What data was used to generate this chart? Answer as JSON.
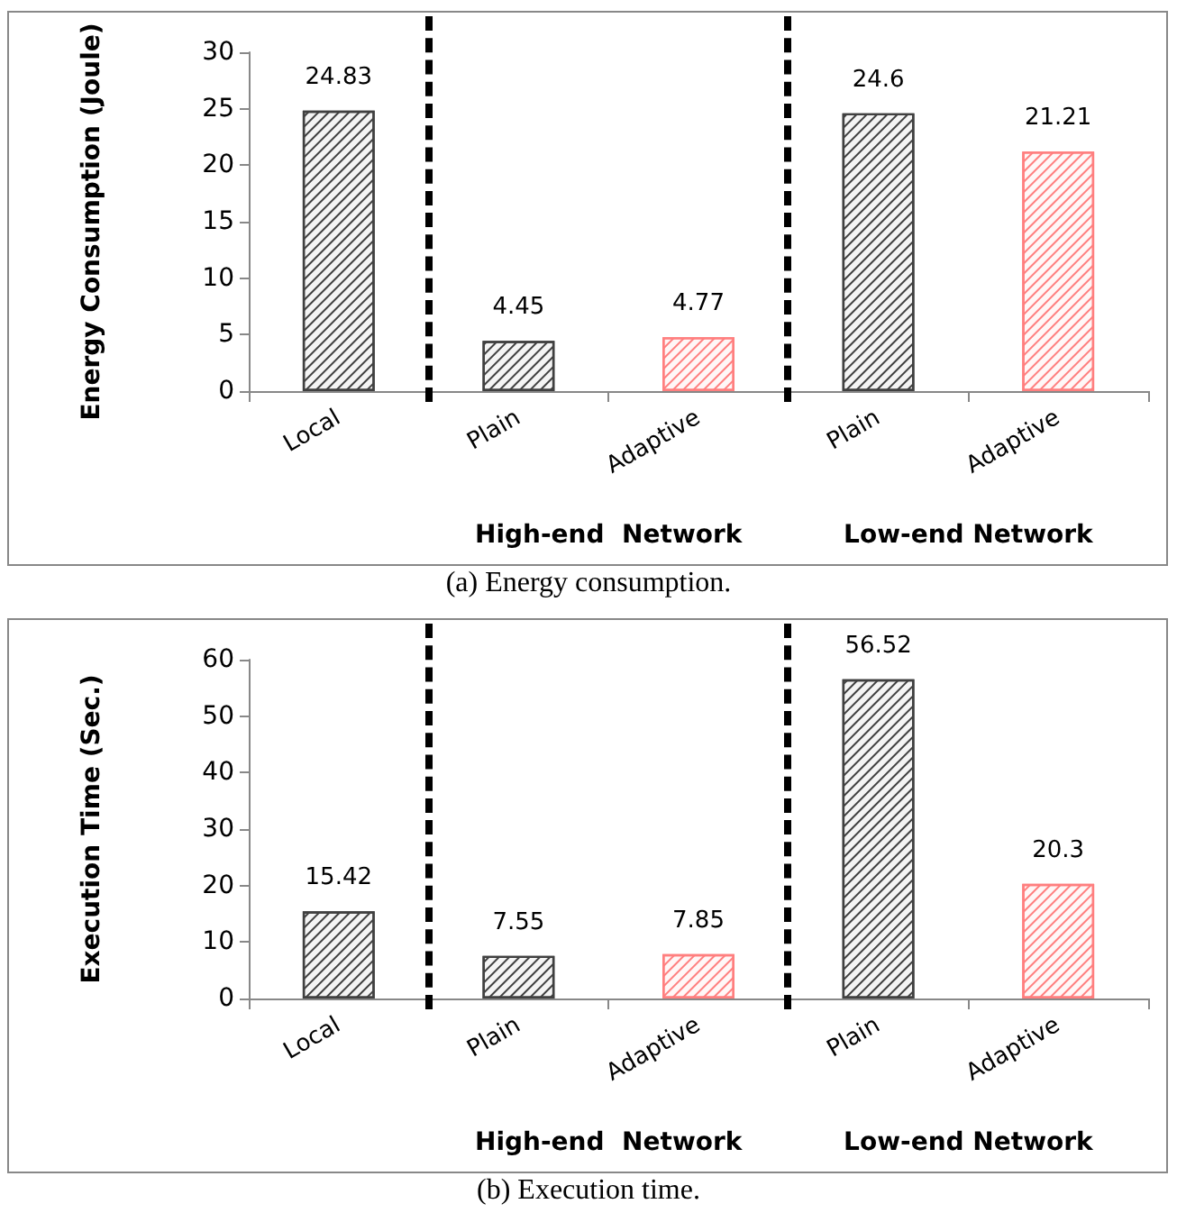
{
  "chart_data": [
    {
      "type": "bar",
      "ylabel": "Energy Consumption (Joule)",
      "categories": [
        "Local",
        "Plain",
        "Adaptive",
        "Plain",
        "Adaptive"
      ],
      "values": [
        24.83,
        4.45,
        4.77,
        24.6,
        21.21
      ],
      "colors": [
        "#404040",
        "#404040",
        "#ff7f7f",
        "#404040",
        "#ff7f7f"
      ],
      "ylim": [
        0,
        30
      ],
      "yticks": [
        0,
        5,
        10,
        15,
        20,
        25,
        30
      ],
      "data_labels": true,
      "annotations": [
        "High-end  Network",
        "Low-end Network",
        "(a) Energy consumption."
      ]
    },
    {
      "type": "bar",
      "ylabel": "Execution Time (Sec.)",
      "categories": [
        "Local",
        "Plain",
        "Adaptive",
        "Plain",
        "Adaptive"
      ],
      "values": [
        15.42,
        7.55,
        7.85,
        56.52,
        20.3
      ],
      "colors": [
        "#404040",
        "#404040",
        "#ff7f7f",
        "#404040",
        "#ff7f7f"
      ],
      "ylim": [
        0,
        60
      ],
      "yticks": [
        0,
        10,
        20,
        30,
        40,
        50,
        60
      ],
      "data_labels": true,
      "annotations": [
        "High-end  Network",
        "Low-end Network",
        "(b) Execution time."
      ]
    }
  ]
}
